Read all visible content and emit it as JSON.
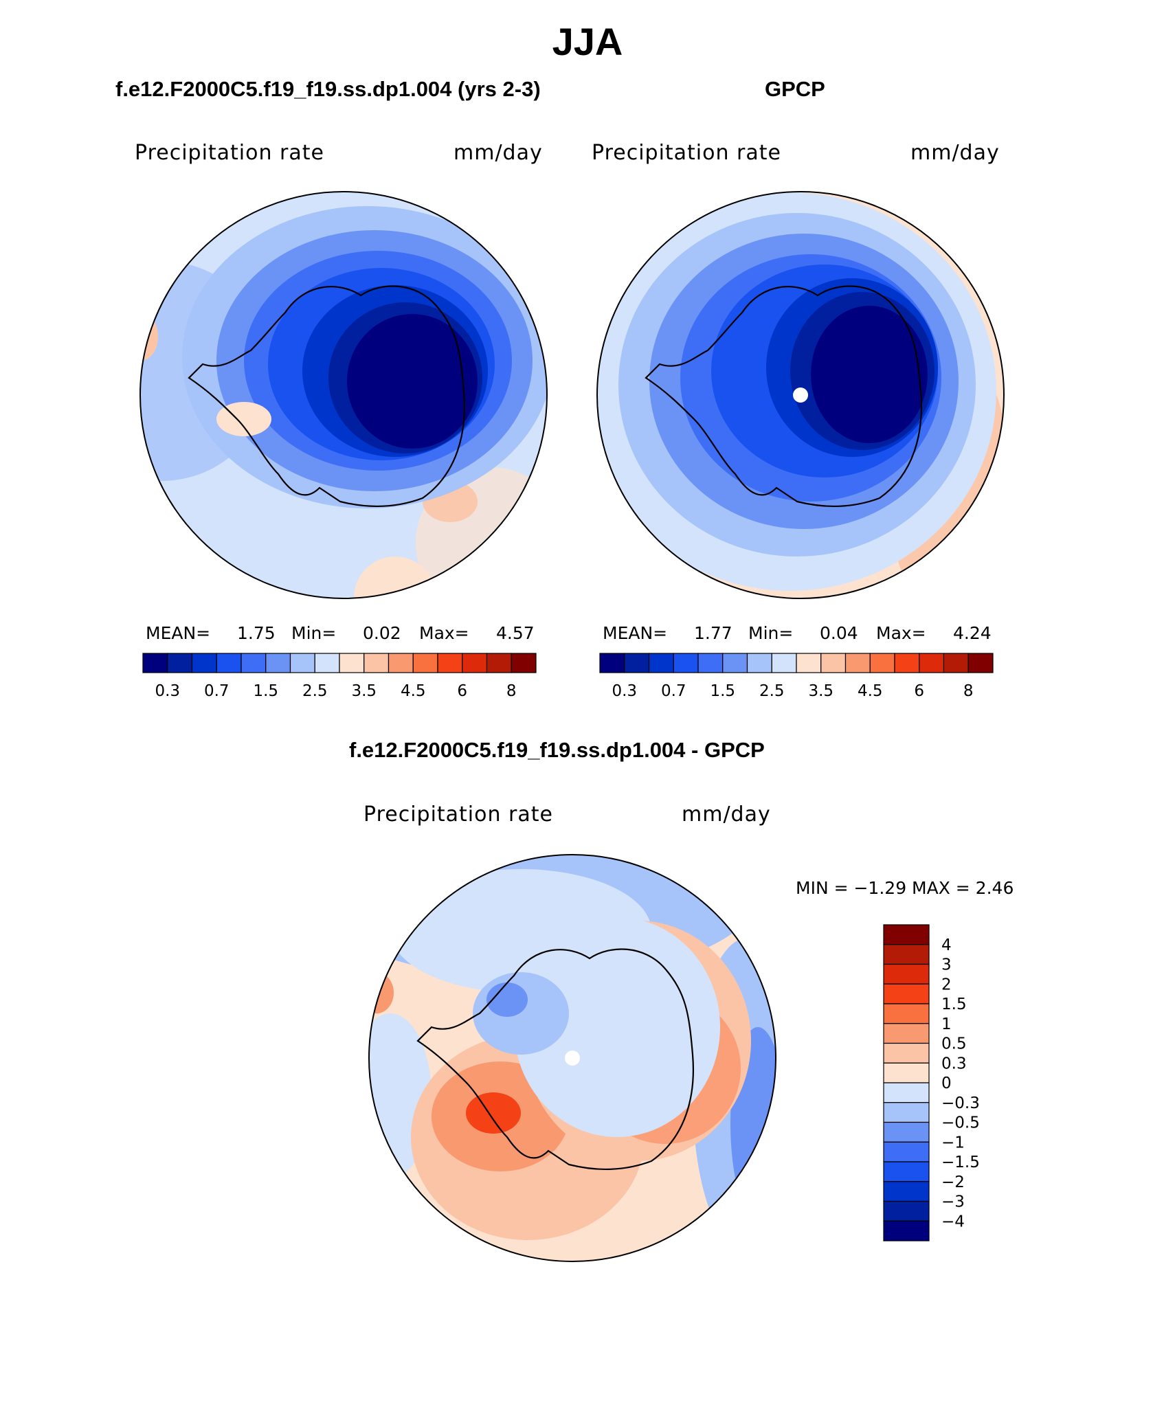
{
  "figure_title": "JJA",
  "panels": [
    {
      "title": "f.e12.F2000C5.f19_f19.ss.dp1.004 (yrs 2-3)",
      "var_label": "Precipitation rate",
      "units": "mm/day",
      "mean_label": "MEAN=",
      "mean": "1.75",
      "min_label": "Min=",
      "min": "0.02",
      "max_label": "Max=",
      "max": "4.57",
      "has_pole_marker": false
    },
    {
      "title": "GPCP",
      "var_label": "Precipitation rate",
      "units": "mm/day",
      "mean_label": "MEAN=",
      "mean": "1.77",
      "min_label": "Min=",
      "min": "0.04",
      "max_label": "Max=",
      "max": "4.24",
      "has_pole_marker": true
    },
    {
      "title": "f.e12.F2000C5.f19_f19.ss.dp1.004 - GPCP",
      "var_label": "Precipitation rate",
      "units": "mm/day",
      "minmax_text": "MIN =   −1.29 MAX =    2.46",
      "has_pole_marker": true
    }
  ],
  "colorbar_abs": {
    "colors": [
      "#00007f",
      "#0020a0",
      "#0035cc",
      "#1a52f0",
      "#3d6ef5",
      "#6b93f5",
      "#a6c3fa",
      "#d3e3fb",
      "#fde3cf",
      "#fbc4a7",
      "#f99970",
      "#f8713e",
      "#f44116",
      "#dc2a0a",
      "#b41b06",
      "#800000"
    ],
    "tick_labels": [
      "0.3",
      "0.7",
      "1.5",
      "2.5",
      "3.5",
      "4.5",
      "6",
      "8"
    ]
  },
  "colorbar_diff": {
    "colors": [
      "#800000",
      "#b41b06",
      "#dc2a0a",
      "#f44116",
      "#f8713e",
      "#f99970",
      "#fbc4a7",
      "#fde3cf",
      "#d3e3fb",
      "#a6c3fa",
      "#6b93f5",
      "#3d6ef5",
      "#1a52f0",
      "#0035cc",
      "#0020a0",
      "#00007f"
    ],
    "tick_labels": [
      "4",
      "3",
      "2",
      "1.5",
      "1",
      "0.5",
      "0.3",
      "0",
      "−0.3",
      "−0.5",
      "−1",
      "−1.5",
      "−2",
      "−3",
      "−4"
    ]
  },
  "chart_data": [
    {
      "type": "heatmap",
      "title": "f.e12.F2000C5.f19_f19.ss.dp1.004 (yrs 2-3)",
      "projection": "south polar stereographic",
      "variable": "Precipitation rate",
      "units": "mm/day",
      "contour_levels": [
        0.2,
        0.3,
        0.5,
        0.7,
        1,
        1.5,
        2,
        2.5,
        3,
        3.5,
        4,
        4.5,
        5,
        6,
        7,
        8
      ],
      "mean": 1.75,
      "min": 0.02,
      "max": 4.57
    },
    {
      "type": "heatmap",
      "title": "GPCP",
      "projection": "south polar stereographic",
      "variable": "Precipitation rate",
      "units": "mm/day",
      "contour_levels": [
        0.2,
        0.3,
        0.5,
        0.7,
        1,
        1.5,
        2,
        2.5,
        3,
        3.5,
        4,
        4.5,
        5,
        6,
        7,
        8
      ],
      "mean": 1.77,
      "min": 0.04,
      "max": 4.24
    },
    {
      "type": "heatmap",
      "title": "f.e12.F2000C5.f19_f19.ss.dp1.004 - GPCP",
      "projection": "south polar stereographic",
      "variable": "Precipitation rate",
      "units": "mm/day",
      "contour_levels": [
        -4,
        -3,
        -2,
        -1.5,
        -1,
        -0.5,
        -0.3,
        0,
        0.3,
        0.5,
        1,
        1.5,
        2,
        3,
        4
      ],
      "min": -1.29,
      "max": 2.46
    }
  ]
}
